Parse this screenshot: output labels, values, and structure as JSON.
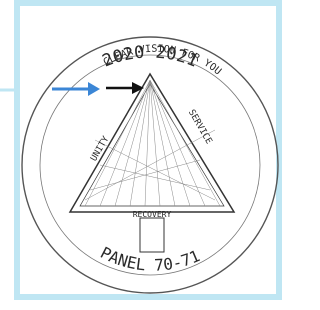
{
  "logo": {
    "top_text": "2020 2021",
    "arc_text": "CLEAR VISION FOR YOU",
    "left_side": "UNITY",
    "right_side": "SERVICE",
    "bottom_side": "RECOVERY",
    "bottom_text": "PANEL 70-71"
  }
}
